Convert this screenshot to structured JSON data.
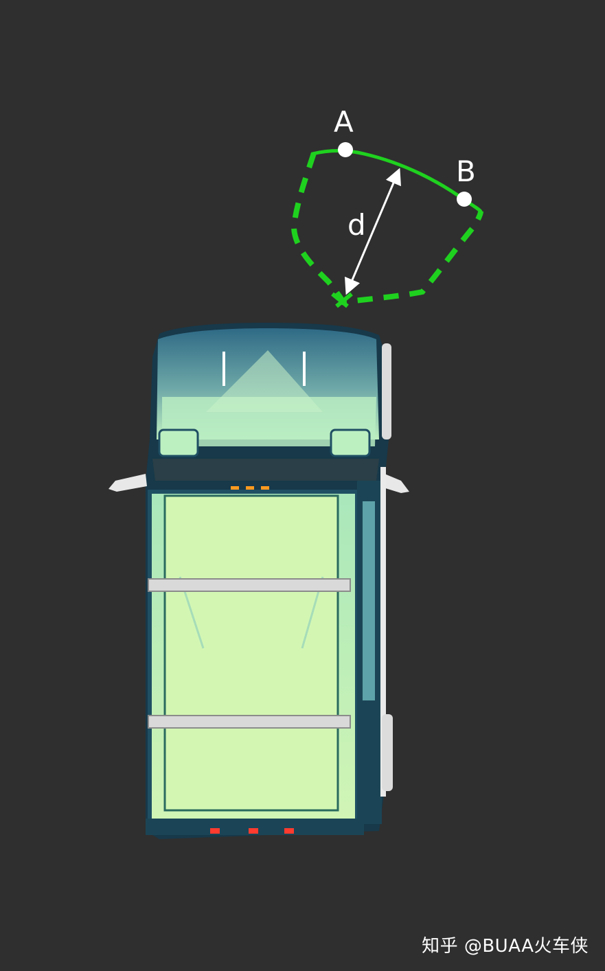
{
  "diagram": {
    "points": {
      "a": {
        "label": "A"
      },
      "b": {
        "label": "B"
      }
    },
    "distance": {
      "label": "d"
    },
    "colors": {
      "background": "#2f2f2f",
      "boundary": "#1fd11f",
      "points": "#ffffff",
      "arrow": "#ffffff",
      "vehicle_body": "#d4f7b6",
      "vehicle_frame": "#1f4f63",
      "vehicle_hood": "#3a6f86"
    }
  },
  "watermark": {
    "text": "知乎 @BUAA火车侠"
  }
}
